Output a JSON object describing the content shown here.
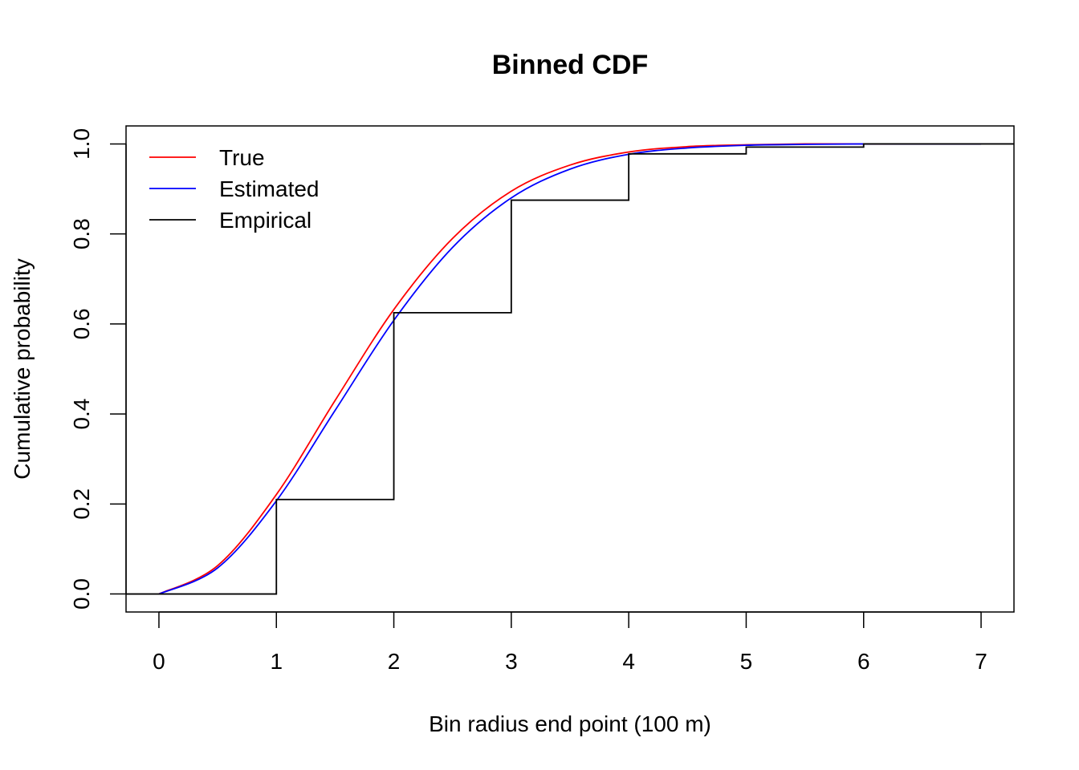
{
  "chart_data": {
    "type": "line",
    "title": "Binned CDF",
    "xlabel": "Bin radius end point (100 m)",
    "ylabel": "Cumulative probability",
    "xlim": [
      -0.28,
      7.28
    ],
    "ylim": [
      -0.04,
      1.04
    ],
    "x_ticks": [
      0,
      1,
      2,
      3,
      4,
      5,
      6,
      7
    ],
    "x_tick_labels": [
      "0",
      "1",
      "2",
      "3",
      "4",
      "5",
      "6",
      "7"
    ],
    "y_ticks": [
      0.0,
      0.2,
      0.4,
      0.6,
      0.8,
      1.0
    ],
    "y_tick_labels": [
      "0.0",
      "0.2",
      "0.4",
      "0.6",
      "0.8",
      "1.0"
    ],
    "grid": false,
    "legend": {
      "position": "top-left"
    },
    "series": [
      {
        "name": "True",
        "color": "#ff0000",
        "x": [
          0,
          0.5,
          1,
          1.5,
          2,
          2.5,
          3,
          3.5,
          4,
          4.5,
          5,
          5.5,
          6,
          6.5,
          7
        ],
        "values": [
          0.0,
          0.063,
          0.221,
          0.43,
          0.632,
          0.79,
          0.895,
          0.953,
          0.982,
          0.994,
          0.998,
          1.0,
          1.0,
          1.0,
          1.0
        ]
      },
      {
        "name": "Estimated",
        "color": "#0000ff",
        "x": [
          0,
          0.5,
          1,
          1.5,
          2,
          2.5,
          3,
          3.5,
          4,
          4.5,
          5,
          5.5,
          6,
          6.5,
          7
        ],
        "values": [
          0.0,
          0.058,
          0.207,
          0.408,
          0.608,
          0.77,
          0.88,
          0.944,
          0.977,
          0.991,
          0.997,
          0.999,
          1.0,
          1.0,
          1.0
        ]
      },
      {
        "name": "Empirical",
        "color": "#000000",
        "step": true,
        "x": [
          -0.28,
          1,
          2,
          3,
          4,
          5,
          6,
          7.28
        ],
        "values": [
          0.0,
          0.21,
          0.625,
          0.875,
          0.978,
          0.993,
          1.0,
          1.0
        ]
      }
    ]
  }
}
